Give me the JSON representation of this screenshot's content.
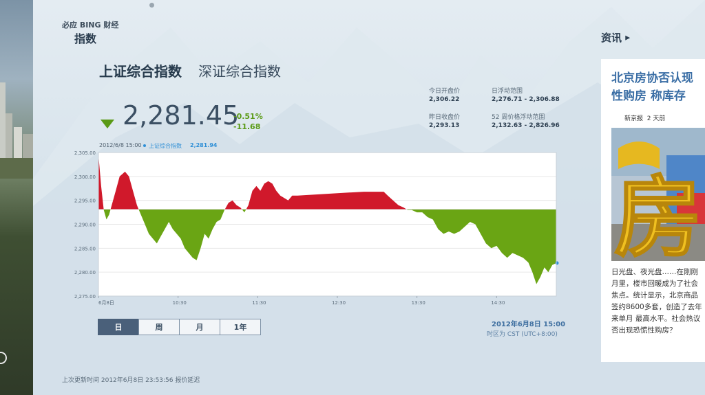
{
  "header": {
    "brand": "必应 BING 财经",
    "section": "指数"
  },
  "tabs": [
    {
      "label": "上证综合指数",
      "active": true
    },
    {
      "label": "深证综合指数",
      "active": false
    }
  ],
  "quote": {
    "price": "2,281.45",
    "change_pct": "-0.51%",
    "change_abs": "-11.68",
    "direction": "down",
    "color_down": "#5a9a16",
    "color_up": "#d0192b"
  },
  "stats": {
    "open_label": "今日开盘价",
    "open_value": "2,306.22",
    "day_range_label": "日浮动范围",
    "day_range_value": "2,276.71  - 2,306.88",
    "prev_close_label": "昨日收盘价",
    "prev_close_value": "2,293.13",
    "week52_label": "52 周价格浮动范围",
    "week52_value": "2,132.63  - 2,826.96"
  },
  "chart_header": {
    "time": "2012/6/8 15:00",
    "series_name": "上证综合指数",
    "series_value": "2,281.94"
  },
  "chart_data": {
    "type": "area",
    "baseline": 2293.13,
    "ylim": [
      2275,
      2305
    ],
    "y_ticks": [
      "2,305.00",
      "2,300.00",
      "2,295.00",
      "2,290.00",
      "2,285.00",
      "2,280.00",
      "2,275.00"
    ],
    "y_tick_values": [
      2305,
      2300,
      2295,
      2290,
      2285,
      2280,
      2275
    ],
    "x_ticks": [
      "6月8日",
      "10:30",
      "11:30",
      "12:30",
      "13:30",
      "14:30"
    ],
    "x_tick_values": [
      0,
      60,
      120,
      180,
      240,
      300
    ],
    "x_range": [
      0,
      345
    ],
    "points": [
      [
        0,
        2304.5
      ],
      [
        2,
        2298
      ],
      [
        4,
        2293
      ],
      [
        6,
        2291
      ],
      [
        8,
        2292
      ],
      [
        10,
        2294
      ],
      [
        13,
        2297
      ],
      [
        16,
        2300
      ],
      [
        20,
        2301
      ],
      [
        23,
        2300
      ],
      [
        26,
        2297
      ],
      [
        29,
        2294
      ],
      [
        32,
        2292
      ],
      [
        35,
        2290
      ],
      [
        38,
        2288
      ],
      [
        41,
        2287
      ],
      [
        44,
        2286
      ],
      [
        47,
        2287.5
      ],
      [
        50,
        2289
      ],
      [
        53,
        2290.5
      ],
      [
        56,
        2289
      ],
      [
        59,
        2288
      ],
      [
        62,
        2287
      ],
      [
        65,
        2285
      ],
      [
        68,
        2284
      ],
      [
        71,
        2283
      ],
      [
        74,
        2282.5
      ],
      [
        77,
        2285
      ],
      [
        80,
        2288
      ],
      [
        83,
        2287
      ],
      [
        86,
        2289
      ],
      [
        89,
        2290.5
      ],
      [
        92,
        2291
      ],
      [
        95,
        2293
      ],
      [
        98,
        2294.5
      ],
      [
        101,
        2295
      ],
      [
        104,
        2294
      ],
      [
        107,
        2293.5
      ],
      [
        110,
        2292.5
      ],
      [
        113,
        2294
      ],
      [
        116,
        2297
      ],
      [
        119,
        2298
      ],
      [
        122,
        2297
      ],
      [
        125,
        2298.5
      ],
      [
        128,
        2299
      ],
      [
        131,
        2298.5
      ],
      [
        134,
        2297
      ],
      [
        137,
        2296
      ],
      [
        140,
        2295.5
      ],
      [
        143,
        2295
      ],
      [
        146,
        2296
      ],
      [
        150,
        2296
      ],
      [
        180,
        2296.5
      ],
      [
        200,
        2296.8
      ],
      [
        215,
        2296.8
      ],
      [
        218,
        2296
      ],
      [
        222,
        2295
      ],
      [
        226,
        2294
      ],
      [
        230,
        2293.5
      ],
      [
        233,
        2293
      ],
      [
        236,
        2293
      ],
      [
        240,
        2292.5
      ],
      [
        244,
        2292.5
      ],
      [
        248,
        2291.5
      ],
      [
        252,
        2291
      ],
      [
        256,
        2289
      ],
      [
        260,
        2288
      ],
      [
        264,
        2288.5
      ],
      [
        268,
        2288
      ],
      [
        272,
        2288.5
      ],
      [
        276,
        2289.5
      ],
      [
        280,
        2290.5
      ],
      [
        284,
        2290
      ],
      [
        288,
        2288
      ],
      [
        292,
        2286
      ],
      [
        296,
        2285
      ],
      [
        300,
        2285.5
      ],
      [
        304,
        2284
      ],
      [
        308,
        2283
      ],
      [
        312,
        2284
      ],
      [
        316,
        2283.5
      ],
      [
        320,
        2283
      ],
      [
        324,
        2282
      ],
      [
        327,
        2280
      ],
      [
        330,
        2277.5
      ],
      [
        333,
        2279
      ],
      [
        336,
        2281
      ],
      [
        339,
        2280
      ],
      [
        342,
        2281.5
      ],
      [
        345,
        2281.9
      ]
    ],
    "grid": true,
    "color_above": "#d0192b",
    "color_below": "#6aa514"
  },
  "range_tabs": [
    {
      "label": "日",
      "active": true
    },
    {
      "label": "周",
      "active": false
    },
    {
      "label": "月",
      "active": false
    },
    {
      "label": "1年",
      "active": false
    }
  ],
  "chart_footer": {
    "date": "2012年6月8日  15:00",
    "timezone": "时区为 CST (UTC+8:00)"
  },
  "footer": {
    "updated": "上次更新时间 2012年6月8日 23:53:56 报价延迟"
  },
  "news": {
    "heading": "资讯",
    "title_line1": "北京房协否认现",
    "title_line2": "性购房 称库存",
    "source": "新京报",
    "age": "2 天前",
    "image_char": "房",
    "body_lines": [
      "日光盘、夜光盘……在刚刚",
      "月里，楼市回暖成为了社会",
      "焦点。统计显示，北京商品",
      "签约8600多套，创造了去年",
      "来单月 最高水平。社会热议",
      "否出现恐慌性购房？"
    ]
  }
}
